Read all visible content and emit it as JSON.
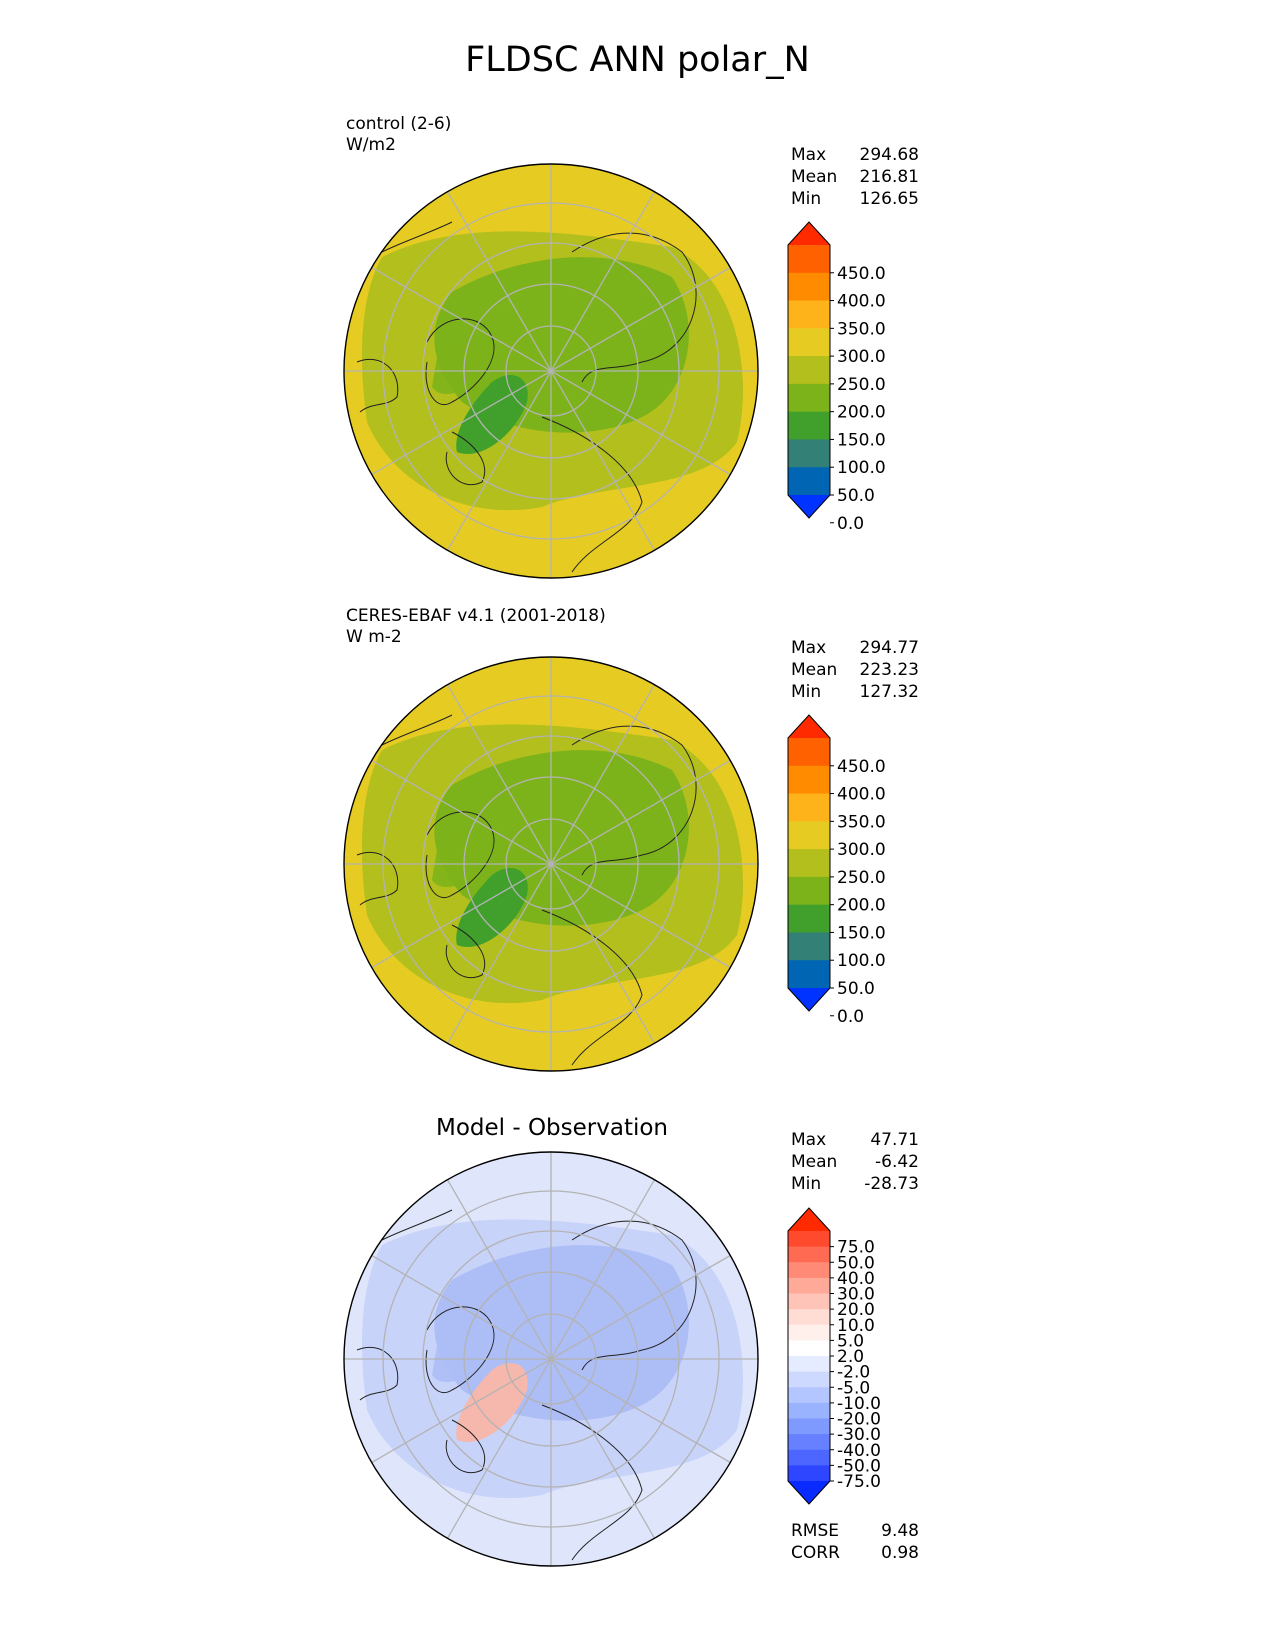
{
  "title": "FLDSC ANN polar_N",
  "panels": [
    {
      "id": "test",
      "label_lines": [
        "control (2-6)",
        "W/m2"
      ],
      "subtitle": "",
      "stats": [
        [
          "Max",
          "294.68"
        ],
        [
          "Mean",
          "216.81"
        ],
        [
          "Min",
          "126.65"
        ]
      ],
      "colorbar_ticks": [
        "450.0",
        "400.0",
        "350.0",
        "300.0",
        "250.0",
        "200.0",
        "150.0",
        "100.0",
        "50.0",
        "0.0"
      ],
      "colorbar_colors": [
        "#ff2a00",
        "#ff6100",
        "#ff8c00",
        "#ffb31a",
        "#e6cc22",
        "#b3bf1c",
        "#7db31a",
        "#40a02b",
        "#338077",
        "#0066b3",
        "#0033ff"
      ],
      "colors": {
        "outer": "#e6cc22",
        "middle": "#b3bf1c",
        "inner": "#7db31a",
        "low": "#40a02b"
      }
    },
    {
      "id": "reference",
      "label_lines": [
        "CERES-EBAF v4.1 (2001-2018)",
        "W m-2"
      ],
      "subtitle": "",
      "stats": [
        [
          "Max",
          "294.77"
        ],
        [
          "Mean",
          "223.23"
        ],
        [
          "Min",
          "127.32"
        ]
      ],
      "colorbar_ticks": [
        "450.0",
        "400.0",
        "350.0",
        "300.0",
        "250.0",
        "200.0",
        "150.0",
        "100.0",
        "50.0",
        "0.0"
      ],
      "colorbar_colors": [
        "#ff2a00",
        "#ff6100",
        "#ff8c00",
        "#ffb31a",
        "#e6cc22",
        "#b3bf1c",
        "#7db31a",
        "#40a02b",
        "#338077",
        "#0066b3",
        "#0033ff"
      ],
      "colors": {
        "outer": "#e6cc22",
        "middle": "#b3bf1c",
        "inner": "#7db31a",
        "low": "#40a02b"
      }
    },
    {
      "id": "difference",
      "label_lines": [],
      "subtitle": "Model - Observation",
      "stats": [
        [
          "Max",
          "47.71"
        ],
        [
          "Mean",
          "-6.42"
        ],
        [
          "Min",
          "-28.73"
        ]
      ],
      "footer_stats": [
        [
          "RMSE",
          "9.48"
        ],
        [
          "CORR",
          "0.98"
        ]
      ],
      "colorbar_ticks": [
        "75.0",
        "50.0",
        "40.0",
        "30.0",
        "20.0",
        "10.0",
        "5.0",
        "2.0",
        "-2.0",
        "-5.0",
        "-10.0",
        "-20.0",
        "-30.0",
        "-40.0",
        "-50.0",
        "-75.0"
      ],
      "colorbar_colors": [
        "#ff2a00",
        "#ff4a2e",
        "#ff6a52",
        "#ff8a75",
        "#ffa998",
        "#ffc4b8",
        "#ffdcd4",
        "#fff0ec",
        "#ffffff",
        "#e6ecff",
        "#cdd9ff",
        "#b3c6ff",
        "#9ab3ff",
        "#7f9aff",
        "#6680ff",
        "#4d66ff",
        "#2e46ff",
        "#0a2bff"
      ],
      "colors": {
        "outer": "#dfe6fb",
        "middle": "#c8d3fa",
        "inner": "#adbdf5",
        "low": "#f6b7ad"
      }
    }
  ]
}
